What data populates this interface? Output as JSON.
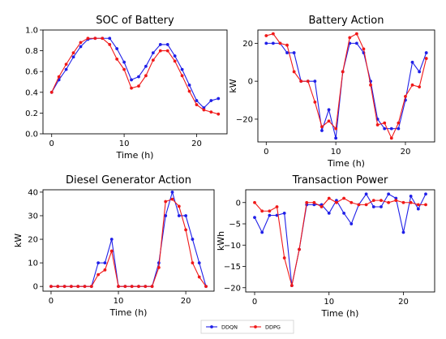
{
  "colors": {
    "ddqn": "#1f1fe8",
    "ddpg": "#f01818"
  },
  "legend": [
    {
      "name": "DDQN",
      "color": "#1f1fe8"
    },
    {
      "name": "DDPG",
      "color": "#f01818"
    }
  ],
  "chart_data": [
    {
      "type": "line",
      "title": "SOC of Battery",
      "xlabel": "Time (h)",
      "ylabel": "",
      "xlim": [
        -1.2,
        24.2
      ],
      "ylim": [
        0.0,
        1.0
      ],
      "xticks": [
        0,
        10,
        20
      ],
      "yticks": [
        0.0,
        0.2,
        0.4,
        0.6,
        0.8,
        1.0
      ],
      "ytick_labels": [
        "0.0",
        "0.2",
        "0.4",
        "0.6",
        "0.8",
        "1.0"
      ],
      "x": [
        0,
        1,
        2,
        3,
        4,
        5,
        6,
        7,
        8,
        9,
        10,
        11,
        12,
        13,
        14,
        15,
        16,
        17,
        18,
        19,
        20,
        21,
        22,
        23
      ],
      "series": [
        {
          "name": "DDQN",
          "values": [
            0.4,
            0.52,
            0.62,
            0.74,
            0.84,
            0.91,
            0.92,
            0.92,
            0.92,
            0.82,
            0.69,
            0.52,
            0.55,
            0.65,
            0.78,
            0.86,
            0.86,
            0.75,
            0.62,
            0.47,
            0.32,
            0.25,
            0.32,
            0.34
          ]
        },
        {
          "name": "DDPG",
          "values": [
            0.4,
            0.55,
            0.67,
            0.78,
            0.88,
            0.92,
            0.92,
            0.92,
            0.86,
            0.72,
            0.62,
            0.44,
            0.46,
            0.56,
            0.71,
            0.8,
            0.8,
            0.7,
            0.56,
            0.41,
            0.28,
            0.23,
            0.21,
            0.19
          ]
        }
      ]
    },
    {
      "type": "line",
      "title": "Battery Action",
      "xlabel": "Time (h)",
      "ylabel": "kW",
      "xlim": [
        -1.2,
        24.2
      ],
      "ylim": [
        -32,
        27
      ],
      "xticks": [
        0,
        10,
        20
      ],
      "yticks": [
        -20,
        0,
        20
      ],
      "ytick_labels": [
        "−20",
        "0",
        "20"
      ],
      "x": [
        0,
        1,
        2,
        3,
        4,
        5,
        6,
        7,
        8,
        9,
        10,
        11,
        12,
        13,
        14,
        15,
        16,
        17,
        18,
        19,
        20,
        21,
        22,
        23
      ],
      "series": [
        {
          "name": "DDQN",
          "values": [
            20,
            20,
            20,
            15,
            15,
            0,
            0,
            0,
            -26,
            -15,
            -30,
            5,
            20,
            20,
            15,
            0,
            -20,
            -25,
            -25,
            -25,
            -10,
            10,
            5,
            15
          ]
        },
        {
          "name": "DDPG",
          "values": [
            24,
            25,
            20,
            19,
            5,
            0,
            0,
            -11,
            -24,
            -21,
            -25,
            5,
            23,
            25,
            17,
            -2,
            -23,
            -22,
            -30,
            -22,
            -8,
            -2,
            -3,
            12
          ]
        }
      ]
    },
    {
      "type": "line",
      "title": "Diesel Generator Action",
      "xlabel": "Time (h)",
      "ylabel": "kW",
      "xlim": [
        -1.2,
        24.2
      ],
      "ylim": [
        -2,
        41
      ],
      "xticks": [
        0,
        10,
        20
      ],
      "yticks": [
        0,
        10,
        20,
        30,
        40
      ],
      "ytick_labels": [
        "0",
        "10",
        "20",
        "30",
        "40"
      ],
      "x": [
        0,
        1,
        2,
        3,
        4,
        5,
        6,
        7,
        8,
        9,
        10,
        11,
        12,
        13,
        14,
        15,
        16,
        17,
        18,
        19,
        20,
        21,
        22,
        23
      ],
      "series": [
        {
          "name": "DDQN",
          "values": [
            0,
            0,
            0,
            0,
            0,
            0,
            0,
            10,
            10,
            20,
            0,
            0,
            0,
            0,
            0,
            0,
            10,
            30,
            40,
            30,
            30,
            20,
            10,
            0
          ]
        },
        {
          "name": "DDPG",
          "values": [
            0,
            0,
            0,
            0,
            0,
            0,
            0,
            5,
            7,
            15,
            0,
            0,
            0,
            0,
            0,
            0,
            8,
            36,
            37,
            34,
            24,
            10,
            4,
            0
          ]
        }
      ]
    },
    {
      "type": "line",
      "title": "Transaction Power",
      "xlabel": "Time (h)",
      "ylabel": "kWh",
      "xlim": [
        -1.2,
        24.2
      ],
      "ylim": [
        -21,
        3
      ],
      "xticks": [
        0,
        10,
        20
      ],
      "yticks": [
        -20,
        -15,
        -10,
        -5,
        0
      ],
      "ytick_labels": [
        "−20",
        "−15",
        "−10",
        "−5",
        "0"
      ],
      "x": [
        0,
        1,
        2,
        3,
        4,
        5,
        6,
        7,
        8,
        9,
        10,
        11,
        12,
        13,
        14,
        15,
        16,
        17,
        18,
        19,
        20,
        21,
        22,
        23
      ],
      "series": [
        {
          "name": "DDQN",
          "values": [
            -3.5,
            -7,
            -3,
            -3,
            -2.5,
            -19.5,
            -11,
            -0.5,
            -0.5,
            -0.5,
            -2.5,
            0.5,
            -2.5,
            -5,
            -0.5,
            2,
            -1,
            -1,
            2,
            1,
            -7,
            1.5,
            -1.5,
            2
          ]
        },
        {
          "name": "DDPG",
          "values": [
            0,
            -2,
            -2,
            -1,
            -13,
            -19.5,
            -11,
            0,
            0,
            -1,
            1,
            0,
            1,
            0,
            -0.5,
            -0.5,
            0.5,
            0.5,
            0,
            0.5,
            0,
            0,
            -0.5,
            -0.5
          ]
        }
      ]
    }
  ]
}
